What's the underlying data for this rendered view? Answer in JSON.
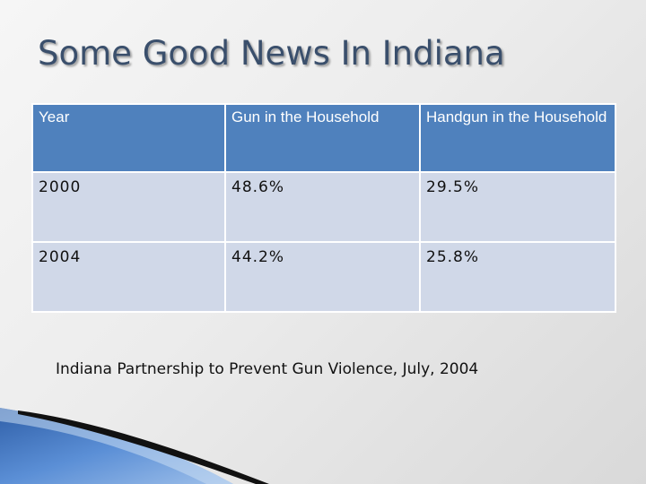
{
  "slide": {
    "title": "Some Good News In Indiana",
    "table": {
      "headers": [
        "Year",
        "Gun in the Household",
        "Handgun in the Household"
      ],
      "rows": [
        [
          "2000",
          "48.6%",
          "29.5%"
        ],
        [
          "2004",
          "44.2%",
          "25.8%"
        ]
      ]
    },
    "source": "Indiana Partnership to Prevent Gun Violence, July, 2004"
  },
  "colors": {
    "header_fill": "#4f81bd",
    "row_fill": "#d0d8e8",
    "title_text": "#3a4f6c",
    "accent_swoosh": "#4a7fc8"
  }
}
